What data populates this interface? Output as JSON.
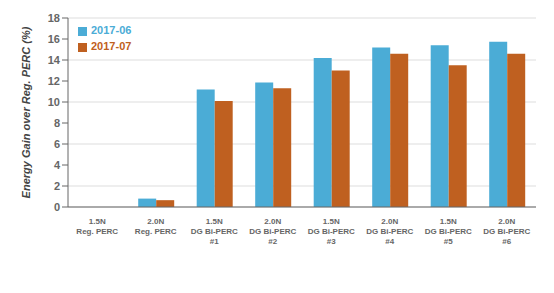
{
  "chart_data": {
    "type": "bar",
    "categories": [
      "1.5N\nReg. PERC",
      "2.0N\nReg. PERC",
      "1.5N\nDG Bi-PERC\n#1",
      "2.0N\nDG Bi-PERC\n#2",
      "1.5N\nDG Bi-PERC\n#3",
      "2.0N\nDG Bi-PERC\n#4",
      "1.5N\nDG Bi-PERC\n#5",
      "2.0N\nDG Bi-PERC\n#6"
    ],
    "series": [
      {
        "name": "2017-06",
        "color": "#4bacd6",
        "values": [
          0.0,
          0.8,
          11.2,
          11.85,
          14.2,
          15.2,
          15.4,
          15.75
        ]
      },
      {
        "name": "2017-07",
        "color": "#bf6020",
        "values": [
          0.0,
          0.65,
          10.1,
          11.3,
          13.0,
          14.6,
          13.5,
          14.6
        ]
      }
    ],
    "ylabel": "Energy Gain over Reg. PERC (%)",
    "ylim": [
      0,
      18
    ],
    "yticks": [
      0,
      2,
      4,
      6,
      8,
      10,
      12,
      14,
      16,
      18
    ],
    "grid": true,
    "legend": "upper left"
  }
}
